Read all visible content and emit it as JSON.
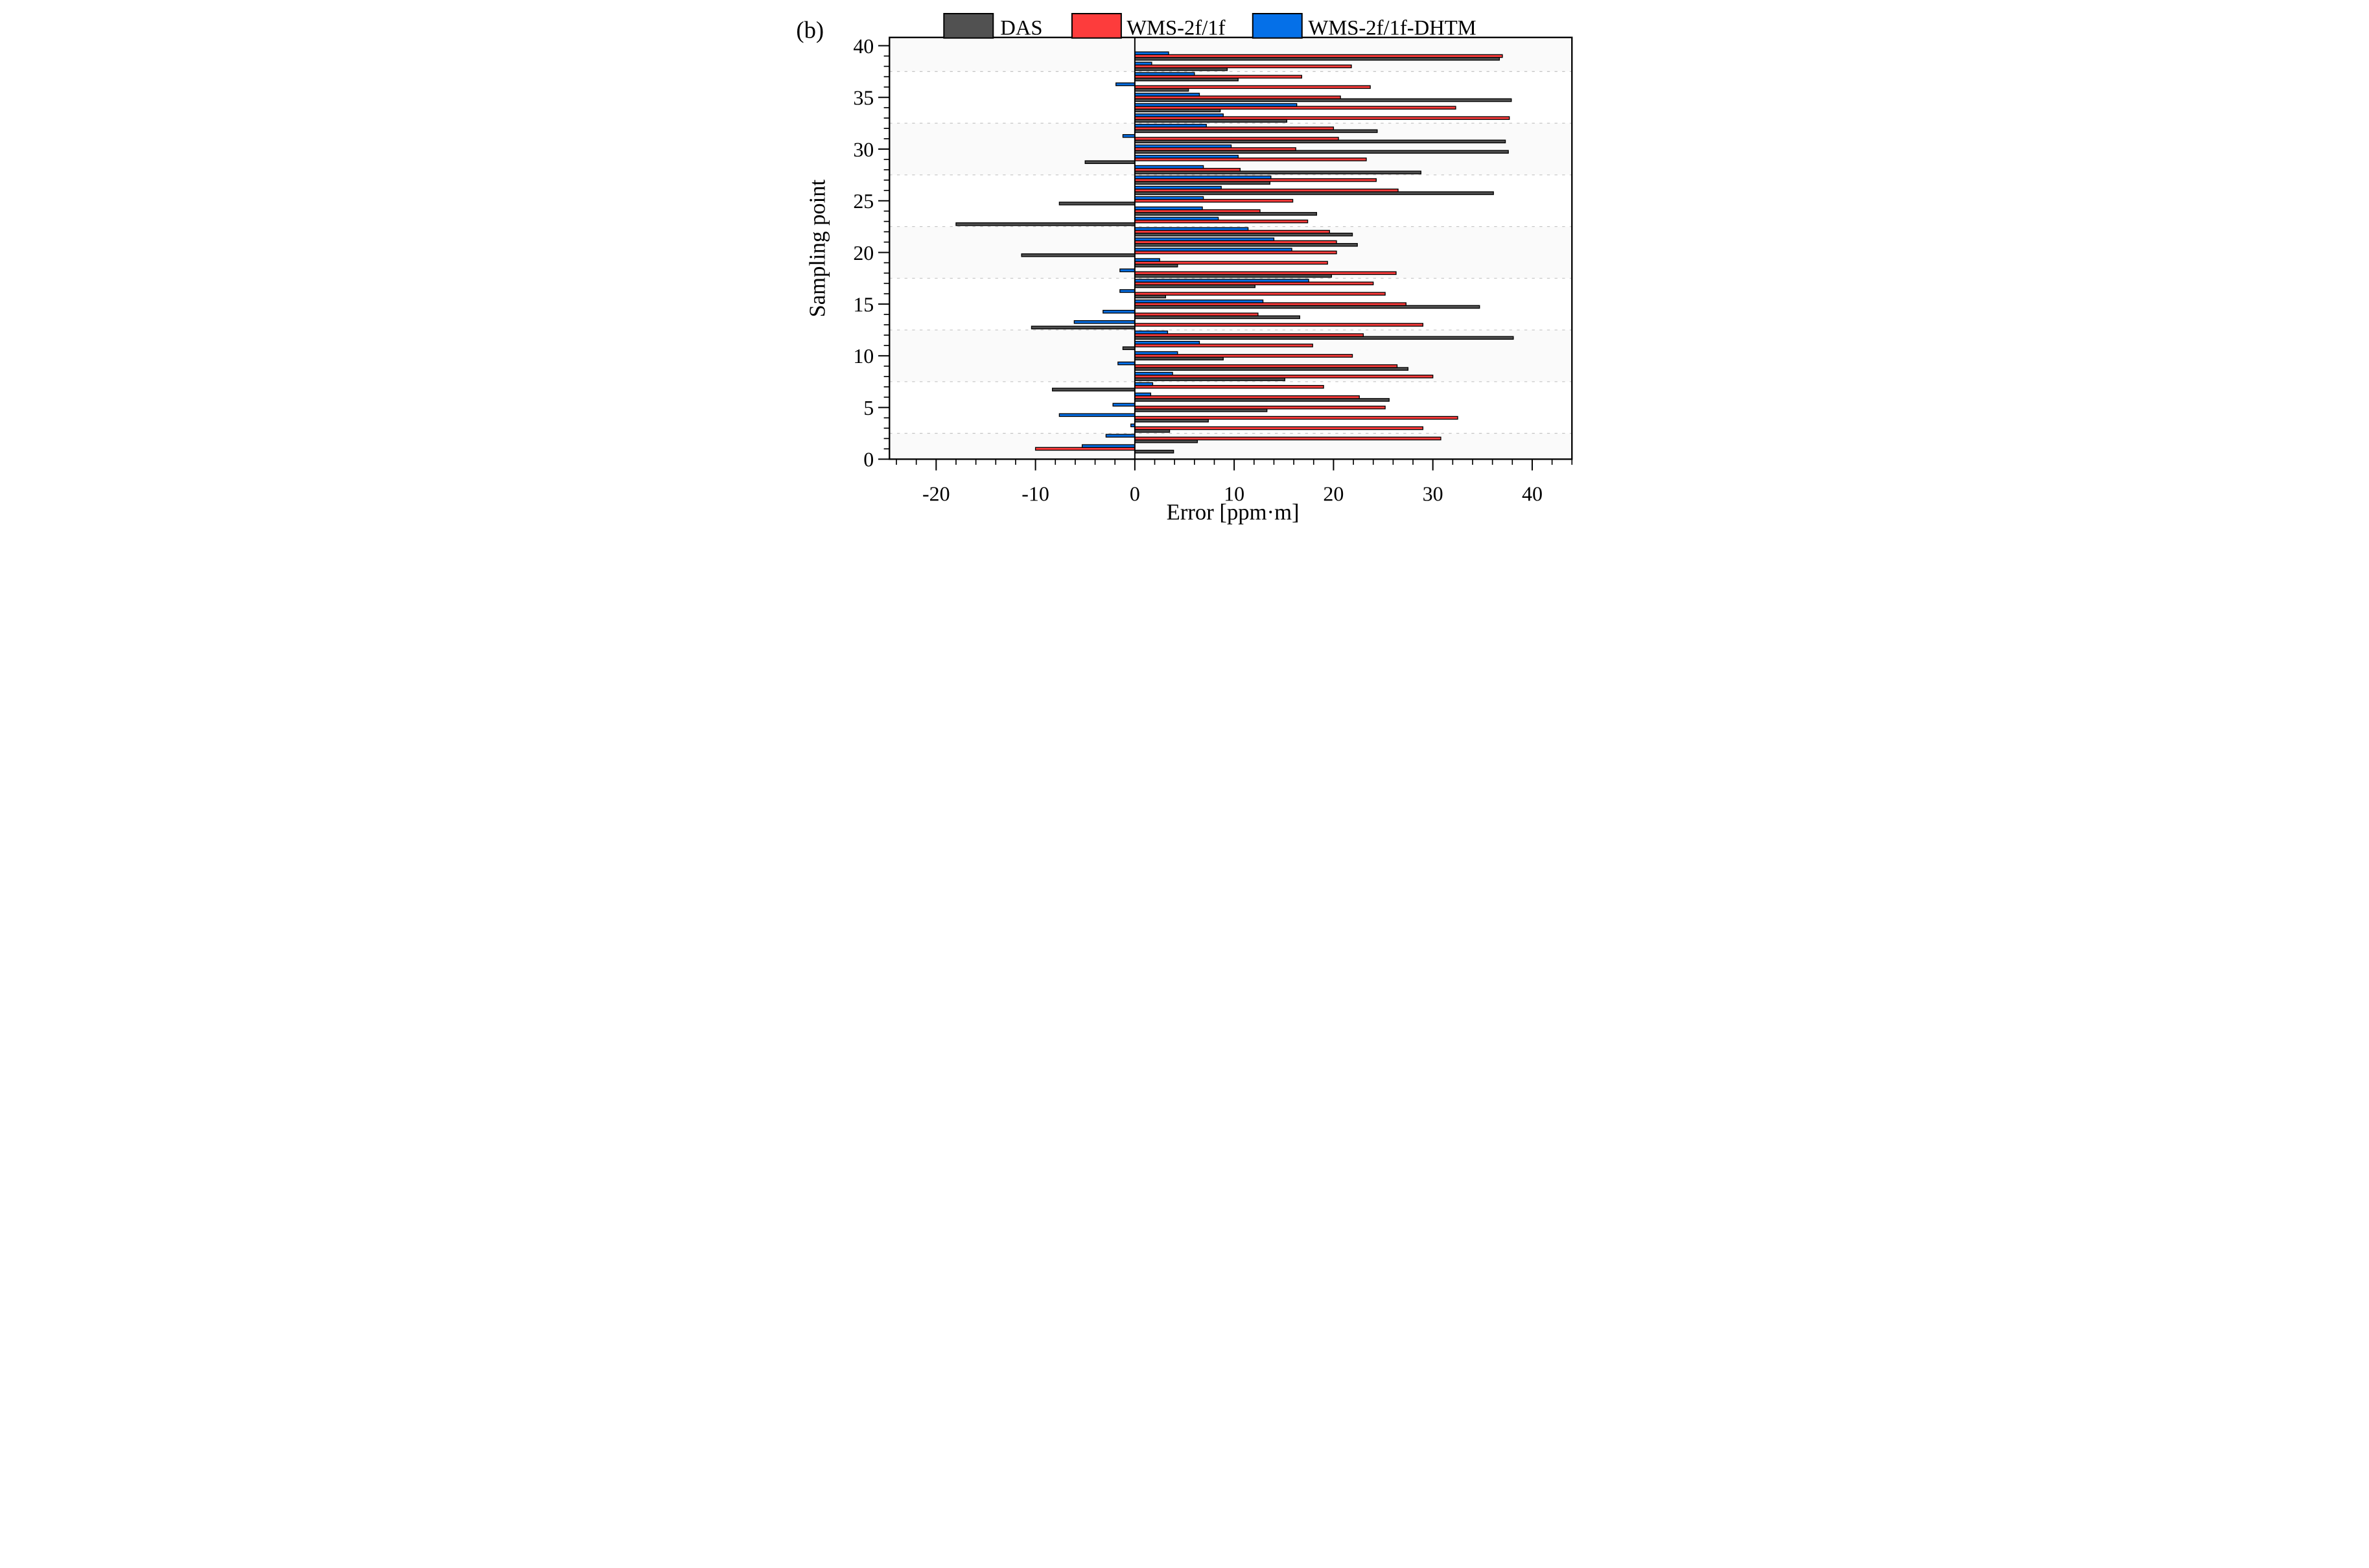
{
  "figure_label": "(b)",
  "legend": [
    {
      "label": "DAS",
      "color": "#515151"
    },
    {
      "label": "WMS-2f/1f",
      "color": "#fd3c3c"
    },
    {
      "label": "WMS-2f/1f-DHTM",
      "color": "#0570e8"
    }
  ],
  "chart_data": {
    "type": "bar",
    "orientation": "horizontal",
    "title": "",
    "xlabel": "Error [ppm·m]",
    "ylabel": "Sampling point",
    "xlim": [
      -24.7,
      44.0
    ],
    "ylim": [
      0,
      40.8
    ],
    "x_ticks": [
      -20,
      -10,
      0,
      10,
      20,
      30,
      40
    ],
    "x_minor_tick_step": 2,
    "y_ticks": [
      0,
      5,
      10,
      15,
      20,
      25,
      30,
      35,
      40
    ],
    "y_minor_tick_step": 1,
    "gridlines_y": [
      2.5,
      7.5,
      12.5,
      17.5,
      22.5,
      27.5,
      32.5,
      37.5
    ],
    "grid": "dashed-horizontal",
    "legend_position": "top",
    "categories": [
      1,
      2,
      3,
      4,
      5,
      6,
      7,
      8,
      9,
      10,
      11,
      12,
      13,
      14,
      15,
      16,
      17,
      18,
      19,
      20,
      21,
      22,
      23,
      24,
      25,
      26,
      27,
      28,
      29,
      30,
      31,
      32,
      33,
      34,
      35,
      36,
      37,
      38,
      39
    ],
    "series": [
      {
        "name": "DAS",
        "color": "#515151",
        "values": [
          3.9,
          6.3,
          3.5,
          7.4,
          13.3,
          25.6,
          -8.3,
          15.1,
          27.5,
          8.9,
          -1.2,
          38.1,
          -10.4,
          16.6,
          34.7,
          3.1,
          12.1,
          19.8,
          4.3,
          -11.4,
          22.4,
          21.9,
          -18.0,
          18.3,
          -7.6,
          36.1,
          13.6,
          28.8,
          -5.0,
          37.6,
          37.3,
          24.4,
          15.3,
          8.6,
          37.9,
          5.4,
          10.4,
          9.3,
          36.7
        ]
      },
      {
        "name": "WMS-2f/1f",
        "color": "#fd3c3c",
        "values": [
          -10.0,
          30.8,
          29.0,
          32.5,
          25.2,
          22.6,
          19.0,
          30.0,
          26.4,
          21.9,
          17.9,
          23.0,
          29.0,
          12.4,
          27.3,
          25.2,
          24.0,
          26.3,
          19.4,
          20.3,
          20.3,
          19.6,
          17.4,
          12.6,
          15.9,
          26.5,
          24.3,
          10.6,
          23.3,
          16.2,
          20.5,
          20.0,
          37.7,
          32.3,
          20.7,
          23.7,
          16.8,
          21.8,
          37.0
        ]
      },
      {
        "name": "WMS-2f/1f-DHTM",
        "color": "#0570e8",
        "values": [
          -5.3,
          -2.9,
          -0.4,
          -7.6,
          -2.2,
          1.6,
          1.8,
          3.8,
          -1.7,
          4.3,
          6.5,
          3.3,
          -6.1,
          -3.2,
          12.9,
          -1.5,
          17.5,
          -1.5,
          2.5,
          15.8,
          14.0,
          11.4,
          8.4,
          6.8,
          6.9,
          8.7,
          13.7,
          6.9,
          10.4,
          9.7,
          -1.2,
          7.2,
          8.9,
          16.3,
          6.5,
          -1.9,
          6.0,
          1.7,
          3.4
        ]
      }
    ]
  }
}
